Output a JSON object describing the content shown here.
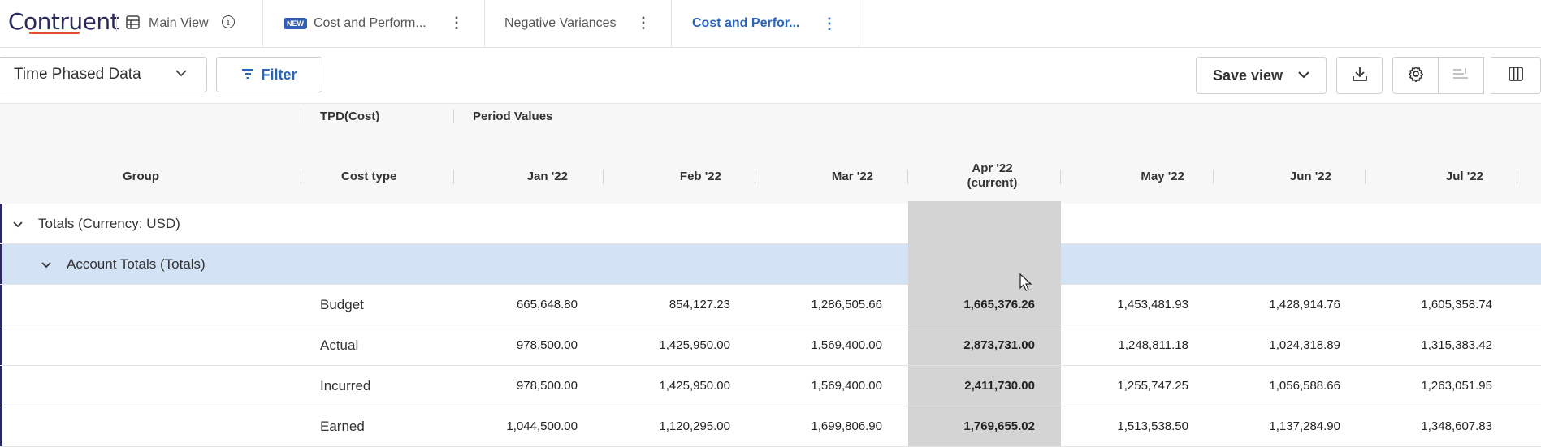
{
  "app": {
    "logo_text": "Contruent"
  },
  "tabs": [
    {
      "label": "Main View",
      "icon": "table-icon",
      "info_icon": "info-icon"
    },
    {
      "label": "Cost and Perform...",
      "badge": "NEW"
    },
    {
      "label": "Negative Variances"
    },
    {
      "label": "Cost and Perfor...",
      "active": true
    }
  ],
  "toolbar": {
    "view_select": "Time Phased Data",
    "filter_label": "Filter",
    "save_label": "Save view",
    "icons": [
      "download-icon",
      "gear-icon",
      "sort-icon",
      "columns-icon"
    ]
  },
  "grid": {
    "group_header_tpd": "TPD(Cost)",
    "group_header_period": "Period Values",
    "columns": {
      "group": "Group",
      "cost_type": "Cost type",
      "periods": [
        "Jan '22",
        "Feb '22",
        "Mar '22",
        "Apr '22",
        "May '22",
        "Jun '22",
        "Jul '22"
      ],
      "current_suffix": "(current)"
    },
    "groups": {
      "totals": "Totals (Currency: USD)",
      "account": "Account Totals (Totals)"
    },
    "rows": [
      {
        "cost_type": "Budget",
        "values": [
          "665,648.80",
          "854,127.23",
          "1,286,505.66",
          "1,665,376.26",
          "1,453,481.93",
          "1,428,914.76",
          "1,605,358.74"
        ]
      },
      {
        "cost_type": "Actual",
        "values": [
          "978,500.00",
          "1,425,950.00",
          "1,569,400.00",
          "2,873,731.00",
          "1,248,811.18",
          "1,024,318.89",
          "1,315,383.42"
        ]
      },
      {
        "cost_type": "Incurred",
        "values": [
          "978,500.00",
          "1,425,950.00",
          "1,569,400.00",
          "2,411,730.00",
          "1,255,747.25",
          "1,056,588.66",
          "1,263,051.95"
        ]
      },
      {
        "cost_type": "Earned",
        "values": [
          "1,044,500.00",
          "1,120,295.00",
          "1,699,806.90",
          "1,769,655.02",
          "1,513,538.50",
          "1,137,284.90",
          "1,348,607.83"
        ]
      }
    ]
  },
  "colors": {
    "accent": "#2a64b8",
    "brand_navy": "#2b2a5c",
    "brand_orange": "#e24b2f",
    "selected_row": "#d3e2f5",
    "current_column": "#d4d4d4"
  }
}
